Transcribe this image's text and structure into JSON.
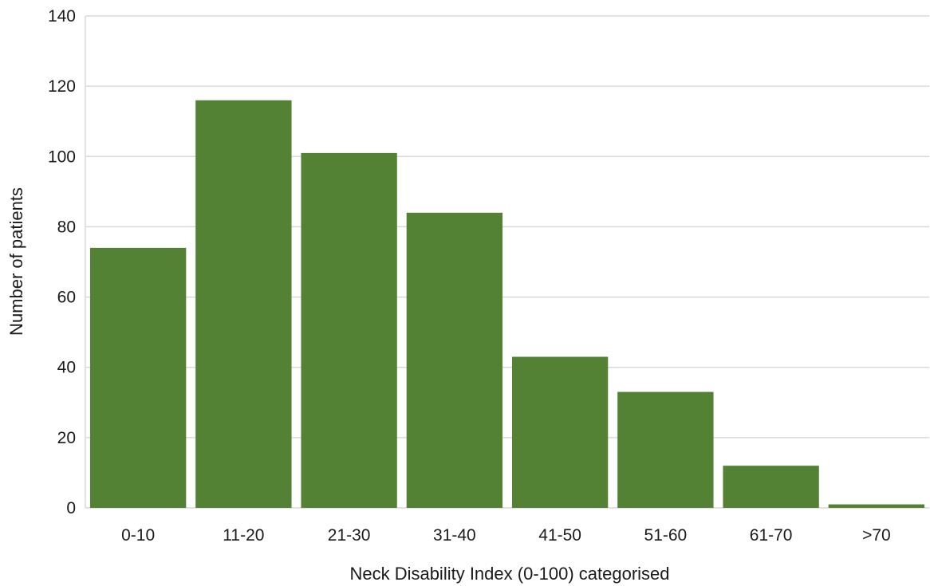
{
  "chart_data": {
    "type": "bar",
    "categories": [
      "0-10",
      "11-20",
      "21-30",
      "31-40",
      "41-50",
      "51-60",
      "61-70",
      ">70"
    ],
    "values": [
      74,
      116,
      101,
      84,
      43,
      33,
      12,
      1
    ],
    "xlabel": "Neck Disability Index (0-100) categorised",
    "ylabel": "Number of patients",
    "ylim": [
      0,
      140
    ],
    "yticks": [
      0,
      20,
      40,
      60,
      80,
      100,
      120,
      140
    ],
    "grid": true,
    "legend": "none",
    "bar_color": "#548235"
  }
}
